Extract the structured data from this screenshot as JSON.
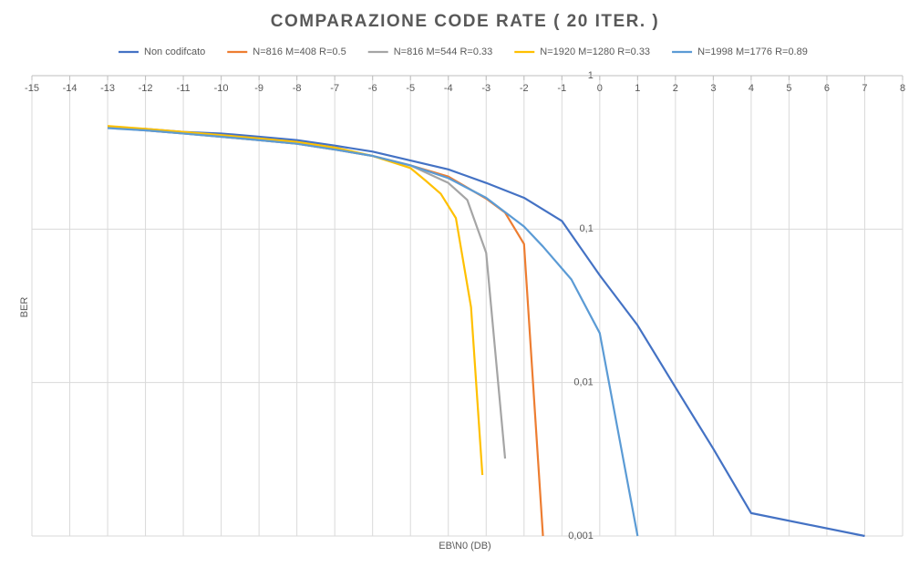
{
  "chart_data": {
    "type": "line",
    "title": "COMPARAZIONE CODE RATE ( 20 ITER. )",
    "x_label": "EB\\N0 (DB)",
    "y_label": "BER",
    "log_y": true,
    "grid": true,
    "xlim": [
      -15,
      8
    ],
    "xticks": [
      -15,
      -14,
      -13,
      -12,
      -11,
      -10,
      -9,
      -8,
      -7,
      -6,
      -5,
      -4,
      -3,
      -2,
      -1,
      0,
      1,
      2,
      3,
      4,
      5,
      6,
      7,
      8
    ],
    "ylim": [
      0.001,
      1
    ],
    "yticks": [
      {
        "value": 0.001,
        "label": "0,001"
      },
      {
        "value": 0.01,
        "label": "0,01"
      },
      {
        "value": 0.1,
        "label": "0,1"
      },
      1
    ],
    "series": [
      {
        "name": "Non codifcato",
        "color": "#4472c4",
        "x": [
          -13,
          -12,
          -11,
          -10,
          -9,
          -8,
          -7,
          -6,
          -5,
          -4,
          -3,
          -2,
          -1,
          0,
          1,
          2,
          3,
          4,
          7
        ],
        "values": [
          0.458,
          0.45,
          0.43,
          0.42,
          0.4,
          0.38,
          0.35,
          0.32,
          0.28,
          0.245,
          0.2,
          0.16,
          0.113,
          0.05,
          0.0236,
          0.0093,
          0.0037,
          0.00141,
          0.001
        ]
      },
      {
        "name": "N=816 M=408 R=0.5",
        "color": "#ed7d31",
        "x": [
          -13,
          -12,
          -11,
          -10,
          -9,
          -8,
          -7,
          -6,
          -5,
          -4,
          -3,
          -2.5,
          -2,
          -1.5
        ],
        "values": [
          0.46,
          0.44,
          0.42,
          0.4,
          0.38,
          0.36,
          0.33,
          0.3,
          0.26,
          0.22,
          0.158,
          0.128,
          0.08,
          0.001
        ]
      },
      {
        "name": "N=816 M=544 R=0.33",
        "color": "#a5a5a5",
        "x": [
          -13,
          -12,
          -11,
          -10,
          -9,
          -8,
          -7,
          -6,
          -5,
          -4,
          -3.5,
          -3,
          -2.5
        ],
        "values": [
          0.46,
          0.44,
          0.42,
          0.4,
          0.38,
          0.36,
          0.33,
          0.3,
          0.26,
          0.2,
          0.155,
          0.07,
          0.0032
        ]
      },
      {
        "name": "N=1920 M=1280 R=0.33",
        "color": "#ffc000",
        "x": [
          -13,
          -12,
          -11,
          -10,
          -9,
          -8,
          -7,
          -6,
          -5,
          -4.6,
          -4.2,
          -3.8,
          -3.4,
          -3.1
        ],
        "values": [
          0.47,
          0.45,
          0.43,
          0.41,
          0.39,
          0.37,
          0.34,
          0.3,
          0.25,
          0.207,
          0.17,
          0.118,
          0.031,
          0.0025
        ]
      },
      {
        "name": "N=1998 M=1776 R=0.89",
        "color": "#5b9bd5",
        "x": [
          -13,
          -12,
          -11,
          -10,
          -9,
          -8,
          -7,
          -6,
          -5,
          -4,
          -3,
          -2,
          -1.5,
          -0.75,
          0,
          1
        ],
        "values": [
          0.455,
          0.44,
          0.42,
          0.4,
          0.38,
          0.36,
          0.33,
          0.3,
          0.26,
          0.215,
          0.16,
          0.104,
          0.077,
          0.047,
          0.021,
          0.001
        ]
      }
    ]
  }
}
